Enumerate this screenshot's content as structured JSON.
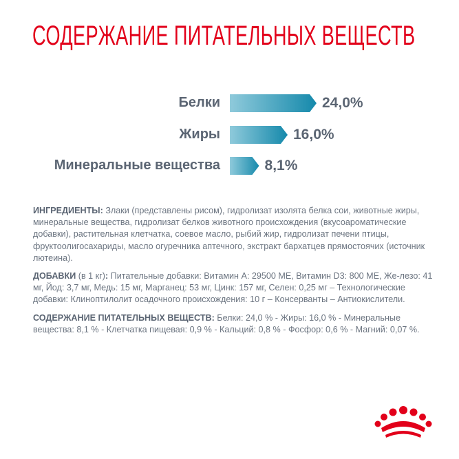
{
  "title": "СОДЕРЖАНИЕ ПИТАТЕЛЬНЫХ ВЕЩЕСТВ",
  "chart_data": {
    "type": "bar",
    "orientation": "horizontal",
    "categories": [
      "Белки",
      "Жиры",
      "Минеральные вещества"
    ],
    "values": [
      24.0,
      16.0,
      8.1
    ],
    "value_labels": [
      "24,0%",
      "16,0%",
      "8,1%"
    ],
    "unit": "%",
    "bar_color_start": "#8fcadb",
    "bar_color_end": "#1589ab"
  },
  "ingredients": {
    "heading": "ИНГРЕДИЕНТЫ:",
    "text": " Злаки (представлены рисом), гидролизат изолята белка сои, животные жиры, минеральные вещества, гидролизат белков животного происхождения (вкусоароматические добавки), растительная клетчатка, соевое масло, рыбий жир, гидролизат печени птицы, фруктоолигосахариды, масло огуречника аптечного, экстракт бархатцев прямостоячих (источник лютеина)."
  },
  "additives": {
    "heading": "ДОБАВКИ",
    "sub": " (в 1 кг)",
    "colon": ":",
    "text": " Питательные добавки: Витамин A: 29500 МЕ, Витамин D3: 800 МЕ, Же-лезо: 41 мг, Йод: 3,7 мг, Медь: 15 мг, Марганец: 53 мг, Цинк: 157 мг, Селен: 0,25 мг – Технологические добавки: Клиноптилолит осадочного происхождения: 10 г – Консерванты – Антиокислители."
  },
  "nutrients": {
    "heading": "СОДЕРЖАНИЕ ПИТАТЕЛЬНЫХ ВЕЩЕСТВ:",
    "text": " Белки: 24,0 % - Жиры: 16,0 % - Минеральные вещества: 8,1 % - Клетчатка пищевая: 0,9 % - Кальций: 0,8 % - Фосфор: 0,6 % - Магний: 0,07 %."
  },
  "logo": {
    "name": "royal-canin-crown-logo",
    "color": "#e2001a"
  }
}
